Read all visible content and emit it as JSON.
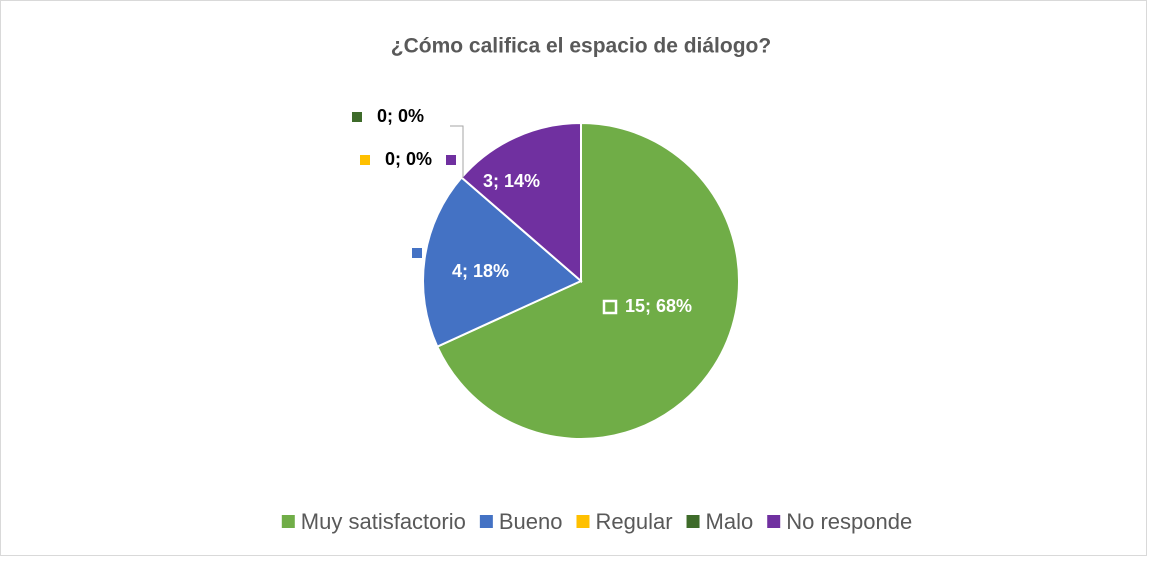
{
  "chart_data": {
    "type": "pie",
    "title": "¿Cómo califica el espacio de diálogo?",
    "categories": [
      "Muy satisfactorio",
      "Bueno",
      "Regular",
      "Malo",
      "No responde"
    ],
    "values": [
      15,
      4,
      0,
      0,
      3
    ],
    "value_labels": [
      "15; 68%",
      "4; 18%",
      "0; 0%",
      "0; 0%",
      "3; 14%"
    ],
    "colors": [
      "#70ad47",
      "#4472c4",
      "#ffc000",
      "#3e6b2a",
      "#7030a0"
    ],
    "legend": "bottom"
  }
}
